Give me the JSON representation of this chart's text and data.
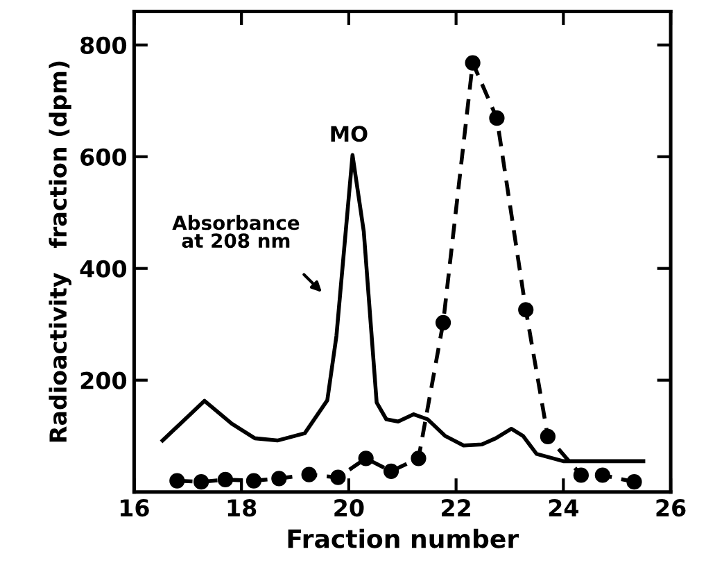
{
  "chart_data": {
    "type": "line",
    "xlabel": "Fraction number",
    "ylabel": "Radioactivity   fraction (dpm)",
    "xlim": [
      16,
      26
    ],
    "ylim": [
      0,
      860
    ],
    "xticks": [
      16,
      18,
      20,
      22,
      24,
      26
    ],
    "yticks": [
      200,
      400,
      600,
      800
    ],
    "grid": false,
    "legend": false,
    "series": [
      {
        "color": "#000000",
        "marker": "none",
        "line_style": "solid",
        "x": [
          16.53,
          17.31,
          17.82,
          18.25,
          18.67,
          19.18,
          19.6,
          19.77,
          20.07,
          20.28,
          20.52,
          20.7,
          20.92,
          21.21,
          21.47,
          21.8,
          22.14,
          22.48,
          22.74,
          23.03,
          23.25,
          23.5,
          24.0,
          24.6,
          25.49
        ],
        "values": [
          92,
          163,
          122,
          96,
          92,
          105,
          164,
          279,
          603,
          466,
          160,
          130,
          126,
          139,
          130,
          100,
          83,
          85,
          96,
          113,
          100,
          68,
          55,
          55,
          55
        ]
      },
      {
        "color": "#000000",
        "marker": "circle",
        "line_style": "dashed",
        "x": [
          16.8,
          17.25,
          17.7,
          18.23,
          18.7,
          19.26,
          19.8,
          20.32,
          20.79,
          21.3,
          21.76,
          22.31,
          22.76,
          23.3,
          23.71,
          24.33,
          24.73,
          25.32
        ],
        "values": [
          20,
          18,
          22,
          20,
          24,
          31,
          26,
          60,
          37,
          60,
          303,
          768,
          669,
          326,
          99,
          30,
          30,
          18
        ]
      }
    ],
    "annotations": [
      "MO",
      "Absorbance\nat 208 nm"
    ]
  }
}
